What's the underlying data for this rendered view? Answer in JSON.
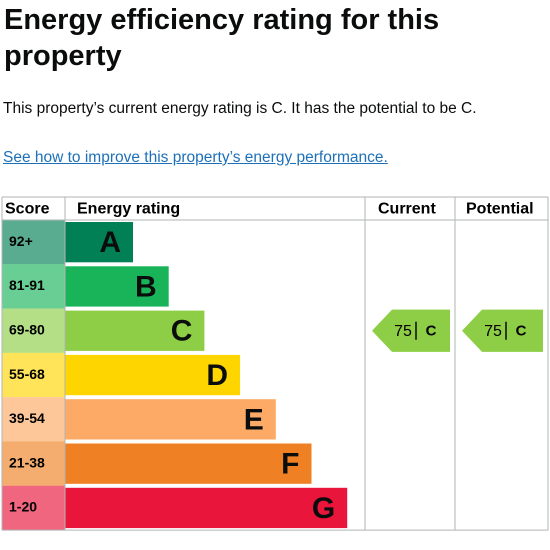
{
  "header": {
    "title": "Energy efficiency rating for this property",
    "summary": "This property’s current energy rating is C. It has the potential to be C.",
    "link": "See how to improve this property’s energy performance."
  },
  "table": {
    "columns": [
      "Score",
      "Energy rating",
      "Current",
      "Potential"
    ],
    "bands": [
      {
        "score": "92+",
        "rating": "A",
        "color": "#008054"
      },
      {
        "score": "81-91",
        "rating": "B",
        "color": "#19b459"
      },
      {
        "score": "69-80",
        "rating": "C",
        "color": "#8dce46"
      },
      {
        "score": "55-68",
        "rating": "D",
        "color": "#ffd500"
      },
      {
        "score": "39-54",
        "rating": "E",
        "color": "#fcaa65"
      },
      {
        "score": "21-38",
        "rating": "F",
        "color": "#ef8023"
      },
      {
        "score": "1-20",
        "rating": "G",
        "color": "#e9153b"
      }
    ],
    "current": {
      "value": 75,
      "rating": "C"
    },
    "potential": {
      "value": 75,
      "rating": "C"
    }
  }
}
